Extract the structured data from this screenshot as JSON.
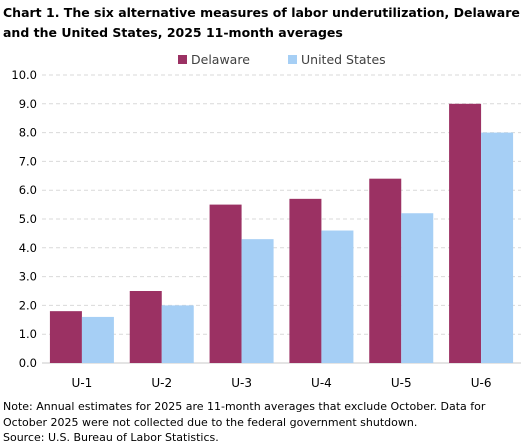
{
  "title": "Chart 1. The six alternative measures of labor underutilization, Delaware and the United States, 2025 11-month averages",
  "note": "Note: Annual estimates for 2025 are 11-month averages that exclude October. Data for October 2025 were not collected due to the federal government shutdown.",
  "source": "Source: U.S. Bureau of Labor Statistics.",
  "chart_data": {
    "type": "bar",
    "categories": [
      "U-1",
      "U-2",
      "U-3",
      "U-4",
      "U-5",
      "U-6"
    ],
    "series": [
      {
        "name": "Delaware",
        "values": [
          1.8,
          2.5,
          5.5,
          5.7,
          6.4,
          9.0
        ],
        "color": "#9b3163"
      },
      {
        "name": "United States",
        "values": [
          1.6,
          2.0,
          4.3,
          4.6,
          5.2,
          8.0
        ],
        "color": "#a6cff5"
      }
    ],
    "ylim": [
      0,
      10
    ],
    "yticks": [
      "0.0",
      "1.0",
      "2.0",
      "3.0",
      "4.0",
      "5.0",
      "6.0",
      "7.0",
      "8.0",
      "9.0",
      "10.0"
    ],
    "grid": true,
    "legend_position": "top-center"
  }
}
